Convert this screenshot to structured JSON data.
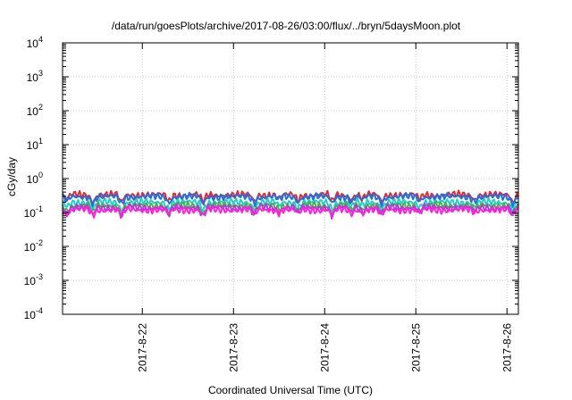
{
  "chart_data": {
    "type": "line",
    "title": "/data/run/goesPlots/archive/2017-08-26/03:00/flux/../bryn/5daysMoon.plot",
    "xlabel": "Coordinated Universal Time (UTC)",
    "ylabel": "cGy/day",
    "yscale": "log",
    "ylim": [
      0.0001,
      10000
    ],
    "yticks": [
      {
        "base": "10",
        "exp": "-4",
        "value": 0.0001
      },
      {
        "base": "10",
        "exp": "-3",
        "value": 0.001
      },
      {
        "base": "10",
        "exp": "-2",
        "value": 0.01
      },
      {
        "base": "10",
        "exp": "-1",
        "value": 0.1
      },
      {
        "base": "10",
        "exp": "0",
        "value": 1
      },
      {
        "base": "10",
        "exp": "1",
        "value": 10
      },
      {
        "base": "10",
        "exp": "2",
        "value": 100
      },
      {
        "base": "10",
        "exp": "3",
        "value": 1000
      },
      {
        "base": "10",
        "exp": "4",
        "value": 10000
      }
    ],
    "xlim": [
      "2017-08-21 03:00",
      "2017-08-26 03:00"
    ],
    "xticks": [
      "2017-8-22",
      "2017-8-23",
      "2017-8-24",
      "2017-8-25",
      "2017-8-26"
    ],
    "grid": true,
    "series": [
      {
        "color": "#e8262f",
        "level": 0.33,
        "dip": 0.55
      },
      {
        "color": "#1f6fe0",
        "level": 0.29,
        "dip": 0.5
      },
      {
        "color": "#20d0c8",
        "level": 0.2,
        "dip": 0.55
      },
      {
        "color": "#44b24a",
        "level": 0.16,
        "dip": 0.6
      },
      {
        "color": "#b03cd8",
        "level": 0.14,
        "dip": 0.6
      },
      {
        "color": "#ff1fdc",
        "level": 0.12,
        "dip": 0.45
      }
    ],
    "dips": [
      {
        "t": "2017-08-21 04:10",
        "depth": 0.55
      },
      {
        "t": "2017-08-21 11:00",
        "depth": 0.75
      },
      {
        "t": "2017-08-21 18:30",
        "depth": 0.8
      },
      {
        "t": "2017-08-22 07:00",
        "depth": 0.7
      },
      {
        "t": "2017-08-22 16:00",
        "depth": 0.8
      },
      {
        "t": "2017-08-23 05:30",
        "depth": 0.7
      },
      {
        "t": "2017-08-23 12:00",
        "depth": 0.4
      },
      {
        "t": "2017-08-23 17:00",
        "depth": 0.6
      },
      {
        "t": "2017-08-24 02:00",
        "depth": 0.75
      },
      {
        "t": "2017-08-24 07:00",
        "depth": 0.55
      },
      {
        "t": "2017-08-24 10:00",
        "depth": 0.45
      },
      {
        "t": "2017-08-24 15:00",
        "depth": 0.7
      },
      {
        "t": "2017-08-25 01:00",
        "depth": 0.5
      },
      {
        "t": "2017-08-25 15:30",
        "depth": 0.5
      },
      {
        "t": "2017-08-26 01:30",
        "depth": 0.75
      }
    ]
  }
}
